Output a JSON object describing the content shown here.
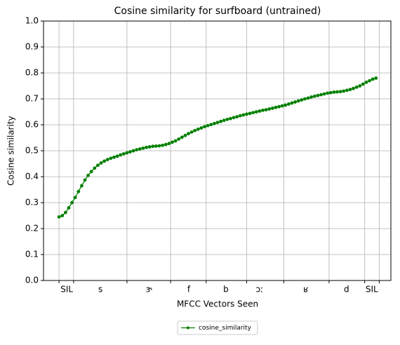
{
  "chart_data": {
    "type": "line",
    "title": "Cosine similarity for surfboard (untrained)",
    "xlabel": "MFCC Vectors Seen",
    "ylabel": "Cosine similarity",
    "x": [
      0,
      1,
      2,
      3,
      4,
      5,
      6,
      7,
      8,
      9,
      10,
      11,
      12,
      13,
      14,
      15,
      16,
      17,
      18,
      19,
      20,
      21,
      22,
      23,
      24,
      25,
      26,
      27,
      28,
      29,
      30,
      31,
      32,
      33,
      34,
      35,
      36,
      37,
      38,
      39,
      40,
      41,
      42,
      43,
      44,
      45,
      46,
      47,
      48,
      49,
      50,
      51,
      52,
      53,
      54,
      55,
      56,
      57,
      58,
      59,
      60,
      61,
      62,
      63,
      64,
      65,
      66,
      67,
      68,
      69,
      70,
      71,
      72,
      73,
      74,
      75,
      76,
      77,
      78,
      79,
      80,
      81,
      82,
      83,
      84,
      85,
      86,
      87,
      88,
      89,
      90,
      91,
      92,
      93,
      94,
      95,
      96,
      97,
      98
    ],
    "series": [
      {
        "name": "cosine_similarity",
        "color": "#008000",
        "values": [
          0.245,
          0.25,
          0.262,
          0.28,
          0.3,
          0.32,
          0.343,
          0.365,
          0.387,
          0.405,
          0.42,
          0.433,
          0.444,
          0.453,
          0.46,
          0.466,
          0.471,
          0.475,
          0.479,
          0.484,
          0.488,
          0.492,
          0.496,
          0.5,
          0.504,
          0.507,
          0.51,
          0.513,
          0.515,
          0.517,
          0.518,
          0.519,
          0.521,
          0.524,
          0.528,
          0.533,
          0.538,
          0.545,
          0.552,
          0.559,
          0.566,
          0.572,
          0.578,
          0.583,
          0.588,
          0.593,
          0.597,
          0.601,
          0.605,
          0.609,
          0.613,
          0.617,
          0.621,
          0.624,
          0.628,
          0.631,
          0.635,
          0.638,
          0.641,
          0.644,
          0.647,
          0.65,
          0.653,
          0.656,
          0.658,
          0.661,
          0.664,
          0.667,
          0.67,
          0.673,
          0.676,
          0.68,
          0.684,
          0.688,
          0.692,
          0.696,
          0.7,
          0.703,
          0.707,
          0.71,
          0.713,
          0.716,
          0.719,
          0.722,
          0.724,
          0.726,
          0.727,
          0.728,
          0.73,
          0.733,
          0.736,
          0.74,
          0.745,
          0.75,
          0.757,
          0.764,
          0.77,
          0.776,
          0.78
        ]
      }
    ],
    "xlim": [
      -4.8,
      102.6
    ],
    "xticks": [
      {
        "value": 2.4,
        "label": "SIL"
      },
      {
        "value": 12.8,
        "label": "s"
      },
      {
        "value": 27.8,
        "label": "ɝ"
      },
      {
        "value": 40.1,
        "label": "f"
      },
      {
        "value": 51.6,
        "label": "b"
      },
      {
        "value": 62,
        "label": "ɔː"
      },
      {
        "value": 76.3,
        "label": "ʁ"
      },
      {
        "value": 88.9,
        "label": "d"
      },
      {
        "value": 96.7,
        "label": "SIL"
      }
    ],
    "x_boundaries": [
      0,
      4.5,
      21,
      34.5,
      45.5,
      58,
      69.5,
      83.5,
      94.5,
      99
    ],
    "ylim": [
      0,
      1
    ],
    "yticks": [
      {
        "value": 0,
        "label": "0.0"
      },
      0.1,
      0.2,
      0.3,
      0.4,
      0.5,
      0.6,
      0.7,
      0.8,
      0.9,
      {
        "value": 1,
        "label": "1.0"
      }
    ],
    "grid": true,
    "legend": "below"
  }
}
